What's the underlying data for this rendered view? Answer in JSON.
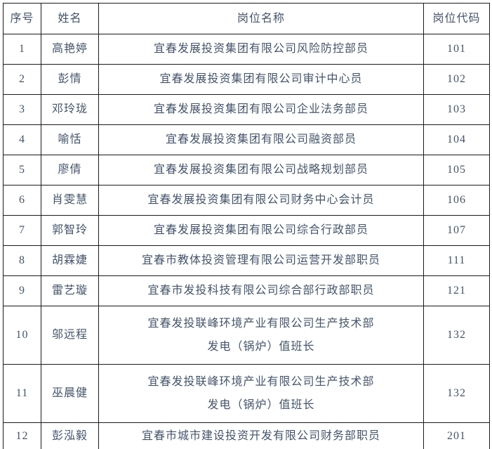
{
  "colors": {
    "text": "#44546a",
    "border": "#1a1a1a",
    "background": "#ffffff"
  },
  "table": {
    "columns": [
      {
        "key": "index",
        "label": "序号"
      },
      {
        "key": "name",
        "label": "姓名"
      },
      {
        "key": "position",
        "label": "岗位名称"
      },
      {
        "key": "code",
        "label": "岗位代码"
      }
    ],
    "rows": [
      {
        "index": "1",
        "name": "高艳婷",
        "position_lines": [
          "宜春发展投资集团有限公司风险防控部员"
        ],
        "code": "101"
      },
      {
        "index": "2",
        "name": "彭情",
        "position_lines": [
          "宜春发展投资集团有限公司审计中心员"
        ],
        "code": "102"
      },
      {
        "index": "3",
        "name": "邓玲珑",
        "position_lines": [
          "宜春发展投资集团有限公司企业法务部员"
        ],
        "code": "103"
      },
      {
        "index": "4",
        "name": "喻恬",
        "position_lines": [
          "宜春发展投资集团有限公司融资部员"
        ],
        "code": "104"
      },
      {
        "index": "5",
        "name": "廖倩",
        "position_lines": [
          "宜春发展投资集团有限公司战略规划部员"
        ],
        "code": "105"
      },
      {
        "index": "6",
        "name": "肖雯慧",
        "position_lines": [
          "宜春发展投资集团有限公司财务中心会计员"
        ],
        "code": "106"
      },
      {
        "index": "7",
        "name": "郭智玲",
        "position_lines": [
          "宜春发展投资集团有限公司综合行政部员"
        ],
        "code": "107"
      },
      {
        "index": "8",
        "name": "胡霖婕",
        "position_lines": [
          "宜春市教体投资管理有限公司运营开发部职员"
        ],
        "code": "111"
      },
      {
        "index": "9",
        "name": "雷艺璇",
        "position_lines": [
          "宜春市发投科技有限公司综合部行政部职员"
        ],
        "code": "121"
      },
      {
        "index": "10",
        "name": "邬远程",
        "position_lines": [
          "宜春发投联峰环境产业有限公司生产技术部",
          "发电（锅炉）值班长"
        ],
        "code": "132"
      },
      {
        "index": "11",
        "name": "巫晨健",
        "position_lines": [
          "宜春发投联峰环境产业有限公司生产技术部",
          "发电（锅炉）值班长"
        ],
        "code": "132"
      },
      {
        "index": "12",
        "name": "彭泓毅",
        "position_lines": [
          "宜春市城市建设投资开发有限公司财务部职员"
        ],
        "code": "201",
        "last": true
      }
    ]
  }
}
